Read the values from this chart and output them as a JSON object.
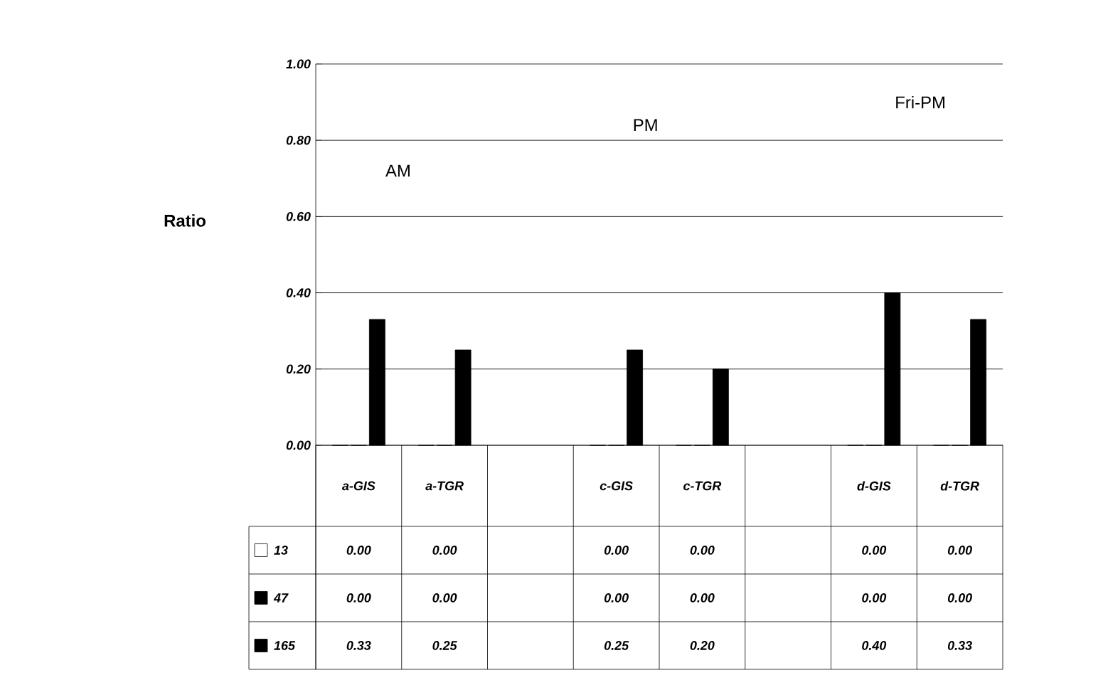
{
  "chart_data": {
    "type": "bar",
    "ylabel": "Ratio",
    "categories": [
      "a-GIS",
      "a-TGR",
      null,
      "c-GIS",
      "c-TGR",
      null,
      "d-GIS",
      "d-TGR"
    ],
    "series": [
      {
        "name": "13",
        "color": "#ffffff",
        "values": [
          0,
          0,
          null,
          0,
          0,
          null,
          0,
          0
        ],
        "value_labels": [
          "0.00",
          "0.00",
          null,
          "0.00",
          "0.00",
          null,
          "0.00",
          "0.00"
        ]
      },
      {
        "name": "47",
        "color": "#000000",
        "values": [
          0,
          0,
          null,
          0,
          0,
          null,
          0,
          0
        ],
        "value_labels": [
          "0.00",
          "0.00",
          null,
          "0.00",
          "0.00",
          null,
          "0.00",
          "0.00"
        ]
      },
      {
        "name": "165",
        "color": "#000000",
        "values": [
          0.33,
          0.25,
          null,
          0.25,
          0.2,
          null,
          0.4,
          0.33
        ],
        "value_labels": [
          "0.33",
          "0.25",
          null,
          "0.25",
          "0.20",
          null,
          "0.40",
          "0.33"
        ]
      }
    ],
    "ylim": [
      0,
      1
    ],
    "yticks": [
      {
        "value": 0,
        "label": "0.00"
      },
      {
        "value": 0.2,
        "label": "0.20"
      },
      {
        "value": 0.4,
        "label": "0.40"
      },
      {
        "value": 0.6,
        "label": "0.60"
      },
      {
        "value": 0.8,
        "label": "0.80"
      },
      {
        "value": 1,
        "label": "1.00"
      }
    ],
    "grid": "y",
    "annotations": [
      "AM",
      "PM",
      "Fri-PM"
    ]
  }
}
